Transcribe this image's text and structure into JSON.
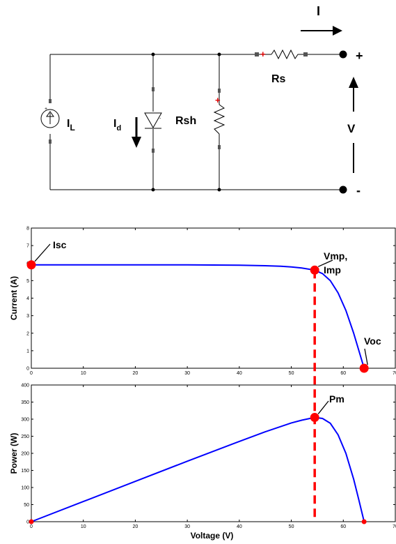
{
  "circuit": {
    "current_arrow_label": "I",
    "source_label_main": "I",
    "source_label_sub": "L",
    "diode_label_main": "I",
    "diode_label_sub": "d",
    "shunt_label": "Rsh",
    "series_label": "Rs",
    "voltage_label": "V",
    "plus_terminal": "+",
    "minus_terminal": "-"
  },
  "colors": {
    "curve": "#0000ff",
    "marker": "#ff0000",
    "dashed": "#ff0000"
  },
  "chart_data": [
    {
      "type": "line",
      "ylabel": "Current (A)",
      "xlabel": "",
      "xlim": [
        0,
        70
      ],
      "ylim": [
        0,
        8
      ],
      "xticks": [
        "0",
        "10",
        "20",
        "30",
        "40",
        "50",
        "60",
        "70"
      ],
      "yticks": [
        "0",
        "1",
        "2",
        "3",
        "4",
        "5",
        "6",
        "7",
        "8"
      ],
      "grid": false,
      "series": [
        {
          "x": [
            0,
            10,
            20,
            30,
            40,
            45,
            48,
            50,
            52,
            54.5,
            56,
            57.5,
            59,
            60.5,
            62,
            63,
            64
          ],
          "y": [
            5.9,
            5.9,
            5.9,
            5.9,
            5.88,
            5.85,
            5.82,
            5.78,
            5.72,
            5.6,
            5.4,
            5.0,
            4.3,
            3.3,
            2.0,
            1.0,
            0.0
          ]
        }
      ],
      "points": [
        {
          "label": "Isc",
          "x": 0,
          "y": 5.9
        },
        {
          "label": "Vmp,",
          "label2": "Imp",
          "x": 54.5,
          "y": 5.6
        },
        {
          "label": "Voc",
          "x": 64,
          "y": 0
        }
      ]
    },
    {
      "type": "line",
      "ylabel": "Power (W)",
      "xlabel": "Voltage (V)",
      "xlim": [
        0,
        70
      ],
      "ylim": [
        0,
        400
      ],
      "xticks": [
        "0",
        "10",
        "20",
        "30",
        "40",
        "50",
        "60",
        "70"
      ],
      "yticks": [
        "0",
        "50",
        "100",
        "150",
        "200",
        "250",
        "300",
        "350",
        "400"
      ],
      "grid": false,
      "series": [
        {
          "x": [
            0,
            10,
            20,
            30,
            40,
            45,
            50,
            52,
            54.5,
            56,
            57.5,
            59,
            60.5,
            62,
            63,
            64
          ],
          "y": [
            0,
            59,
            118,
            177,
            235,
            263,
            289,
            297,
            305,
            302,
            288,
            254,
            200,
            124,
            63,
            0
          ]
        }
      ],
      "points": [
        {
          "label": "Pm",
          "x": 54.5,
          "y": 305
        },
        {
          "label": "",
          "x": 0,
          "y": 0
        },
        {
          "label": "",
          "x": 64,
          "y": 0
        }
      ],
      "vline_x": 54.5
    }
  ]
}
